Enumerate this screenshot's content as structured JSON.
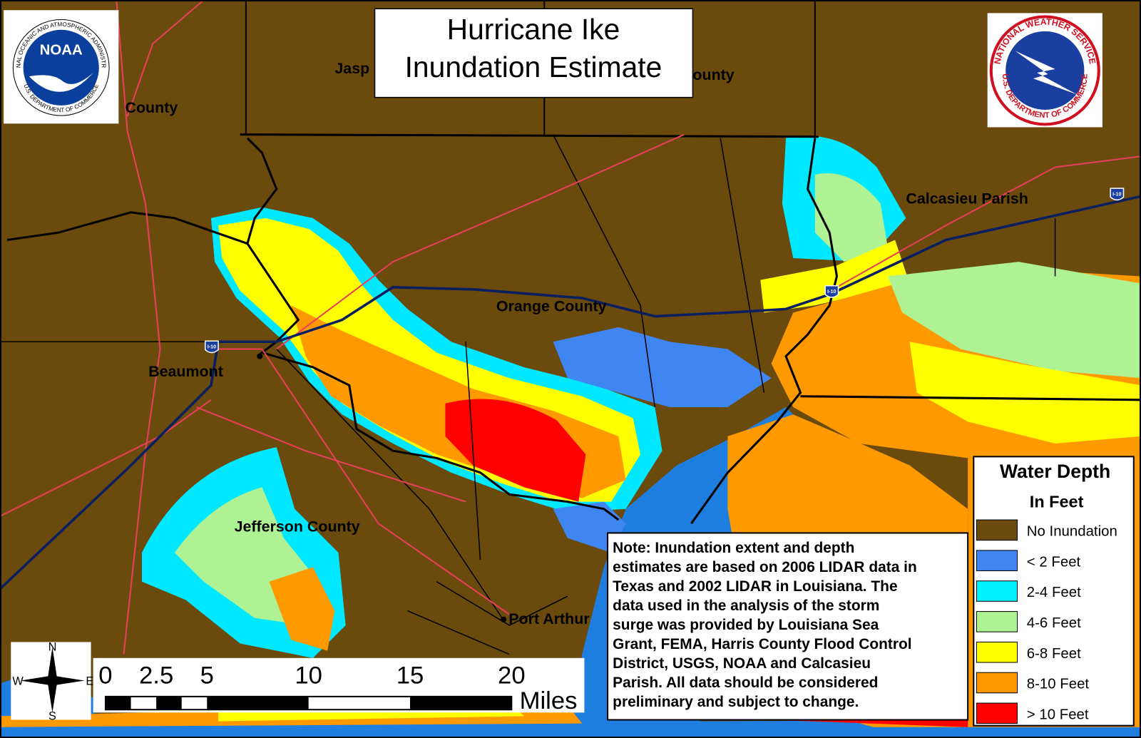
{
  "title_lines": [
    "Hurricane Ike",
    "Inundation Estimate"
  ],
  "logos": {
    "noaa": {
      "emblem": "NOAA",
      "ring_top": "NATIONAL OCEANIC AND ATMOSPHERIC ADMINISTRATION",
      "ring_bottom": "U.S. DEPARTMENT OF COMMERCE"
    },
    "nws": {
      "ring_top": "NATIONAL WEATHER SERVICE",
      "ring_bottom": "U.S. DEPARTMENT OF COMMERCE"
    }
  },
  "place_labels": [
    "Jasp",
    "ounty",
    "County",
    "Calcasieu Parish",
    "Orange County",
    "Beaumont",
    "Jefferson County",
    "Port Arthur"
  ],
  "highway_shields": [
    "I-10",
    "I-10",
    "I-10"
  ],
  "legend": {
    "title": "Water Depth",
    "subtitle": "In Feet",
    "items": [
      {
        "label": "No Inundation",
        "color": "#6b4a0d"
      },
      {
        "label": "< 2 Feet",
        "color": "#3f86f2"
      },
      {
        "label": "2-4 Feet",
        "color": "#00f0ff"
      },
      {
        "label": "4-6 Feet",
        "color": "#aef294"
      },
      {
        "label": "6-8 Feet",
        "color": "#ffff00"
      },
      {
        "label": "8-10 Feet",
        "color": "#ff9900"
      },
      {
        "label": "> 10 Feet",
        "color": "#ff0000"
      }
    ]
  },
  "note_lines": [
    "Note: Inundation extent and depth",
    "estimates  are based on 2006 LIDAR data in",
    "Texas and 2002 LIDAR in Louisiana. The",
    "data used in the analysis of the storm",
    "surge was provided by Louisiana Sea",
    "Grant, FEMA, Harris County Flood Control",
    "District, USGS, NOAA and Calcasieu",
    "Parish. All data should be considered",
    "preliminary and subject to change."
  ],
  "compass": {
    "n": "N",
    "e": "E",
    "s": "S",
    "w": "W"
  },
  "scale": {
    "ticks": [
      0,
      2.5,
      5,
      10,
      15,
      20
    ],
    "unit": "Miles"
  }
}
